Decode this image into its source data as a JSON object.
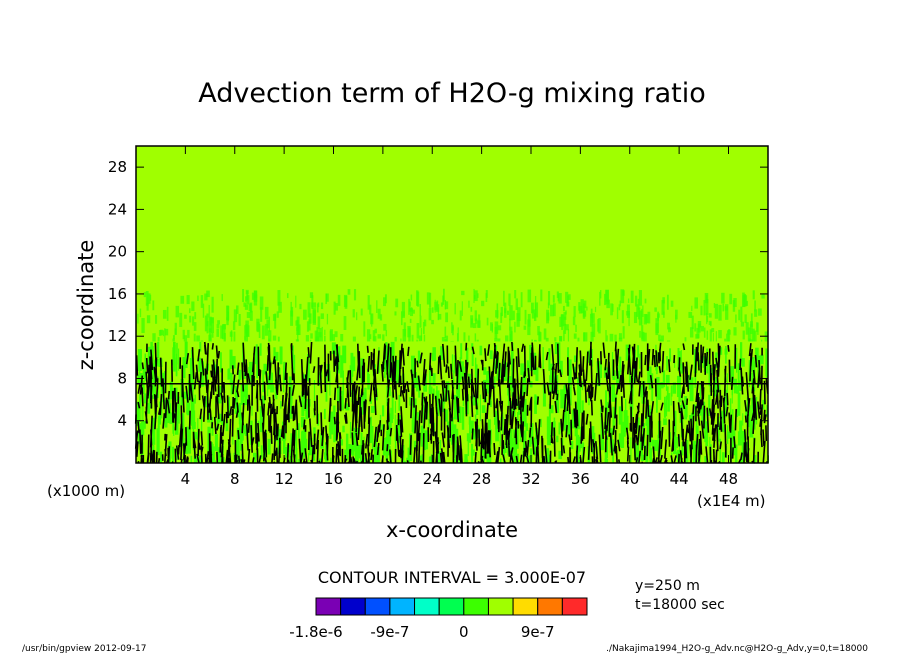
{
  "chart_data": {
    "type": "heatmap",
    "title": "Advection term of H2O-g mixing ratio",
    "xlabel": "x-coordinate",
    "ylabel": "z-coordinate",
    "x_unit_left": "(x1000 m)",
    "x_unit_right": "(x1E4 m)",
    "x_ticks": [
      "4",
      "8",
      "12",
      "16",
      "20",
      "24",
      "28",
      "32",
      "36",
      "40",
      "44",
      "48"
    ],
    "y_ticks": [
      "4",
      "8",
      "12",
      "16",
      "20",
      "24",
      "28"
    ],
    "xlim": [
      0,
      51.2
    ],
    "ylim": [
      0,
      30
    ],
    "contour_interval_label": "CONTOUR INTERVAL = 3.000E-07",
    "info": [
      "y=250 m",
      "t=18000 sec"
    ],
    "colorbar": {
      "colors": [
        "#7a00b4",
        "#0000cc",
        "#0050ff",
        "#00b4ff",
        "#00ffc8",
        "#00ff50",
        "#3cff00",
        "#a0ff00",
        "#ffdc00",
        "#ff7800",
        "#ff2a2a"
      ],
      "tick_labels": [
        "-1.8e-6",
        "-9e-7",
        "0",
        "9e-7"
      ],
      "tick_values": [
        -1.8e-06,
        -9e-07,
        0,
        9e-07
      ],
      "range": [
        -1.8e-06,
        1.5e-06
      ]
    },
    "background_value_color": "#a0ff00",
    "regions": [
      {
        "zmin": 16,
        "zmax": 30,
        "description": "uniform",
        "color": "#a0ff00"
      },
      {
        "zmin": 11.5,
        "zmax": 16.5,
        "description": "weak variation",
        "color": "#3cff00"
      },
      {
        "zmin": 0,
        "zmax": 11.5,
        "description": "dense contours",
        "color": "#3cff00"
      }
    ]
  },
  "footer": {
    "left": "/usr/bin/gpview   2012-09-17",
    "right": "./Nakajima1994_H2O-g_Adv.nc@H2O-g_Adv,y=0,t=18000"
  }
}
